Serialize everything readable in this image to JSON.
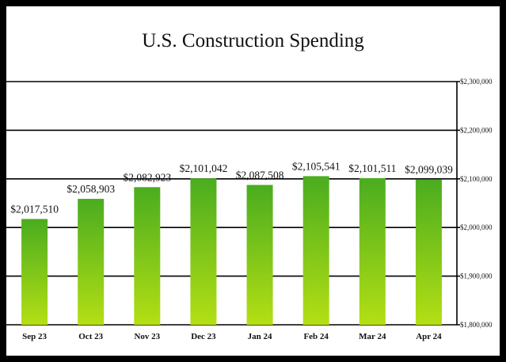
{
  "chart_data": {
    "type": "bar",
    "title": "U.S. Construction Spending",
    "categories": [
      "Sep 23",
      "Oct 23",
      "Nov 23",
      "Dec 23",
      "Jan 24",
      "Feb 24",
      "Mar 24",
      "Apr 24"
    ],
    "values": [
      2017510,
      2058903,
      2082923,
      2101042,
      2087508,
      2105541,
      2101511,
      2099039
    ],
    "value_labels": [
      "$2,017,510",
      "$2,058,903",
      "$2,082,923",
      "$2,101,042",
      "$2,087,508",
      "$2,105,541",
      "$2,101,511",
      "$2,099,039"
    ],
    "ylim": [
      1800000,
      2300000
    ],
    "yticks": [
      1800000,
      1900000,
      2000000,
      2100000,
      2200000,
      2300000
    ],
    "ytick_labels": [
      "$1,800,000",
      "$1,900,000",
      "$2,000,000",
      "$2,100,000",
      "$2,200,000",
      "$2,300,000"
    ],
    "y_axis_side": "right",
    "grid": true,
    "colors": {
      "bar_top": "#4aac1f",
      "bar_bottom": "#b4df14",
      "grid": "#000000",
      "frame": "#000000"
    }
  }
}
